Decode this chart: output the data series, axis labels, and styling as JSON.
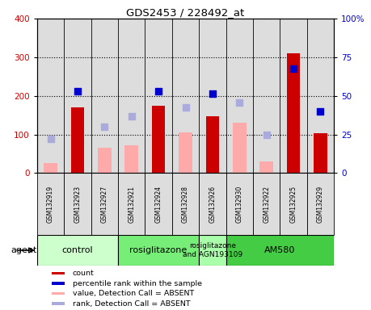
{
  "title": "GDS2453 / 228492_at",
  "samples": [
    "GSM132919",
    "GSM132923",
    "GSM132927",
    "GSM132921",
    "GSM132924",
    "GSM132928",
    "GSM132926",
    "GSM132930",
    "GSM132922",
    "GSM132925",
    "GSM132929"
  ],
  "count_values": [
    null,
    170,
    null,
    null,
    175,
    null,
    148,
    null,
    null,
    310,
    103
  ],
  "count_absent": [
    25,
    null,
    65,
    72,
    null,
    105,
    null,
    130,
    30,
    null,
    null
  ],
  "rank_present": [
    null,
    212,
    null,
    null,
    212,
    null,
    205,
    null,
    null,
    270,
    160
  ],
  "rank_absent": [
    88,
    null,
    120,
    147,
    null,
    170,
    null,
    183,
    98,
    null,
    null
  ],
  "ylim_left": [
    0,
    400
  ],
  "ylim_right": [
    0,
    100
  ],
  "yticks_left": [
    0,
    100,
    200,
    300,
    400
  ],
  "yticks_right": [
    0,
    25,
    50,
    75,
    100
  ],
  "ytick_labels_right": [
    "0",
    "25",
    "50",
    "75",
    "100%"
  ],
  "color_count": "#cc0000",
  "color_rank_present": "#0000cc",
  "color_count_absent": "#ffaaaa",
  "color_rank_absent": "#aaaadd",
  "agent_groups": [
    {
      "label": "control",
      "start": 0,
      "end": 3,
      "color": "#ccffcc"
    },
    {
      "label": "rosiglitazone",
      "start": 3,
      "end": 6,
      "color": "#77ee77"
    },
    {
      "label": "rosiglitazone\nand AGN193109",
      "start": 6,
      "end": 7,
      "color": "#aaffaa"
    },
    {
      "label": "AM580",
      "start": 7,
      "end": 11,
      "color": "#44cc44"
    }
  ],
  "legend_items": [
    {
      "label": "count",
      "color": "#cc0000"
    },
    {
      "label": "percentile rank within the sample",
      "color": "#0000cc"
    },
    {
      "label": "value, Detection Call = ABSENT",
      "color": "#ffaaaa"
    },
    {
      "label": "rank, Detection Call = ABSENT",
      "color": "#aaaadd"
    }
  ],
  "bar_width": 0.5,
  "dot_size": 40
}
